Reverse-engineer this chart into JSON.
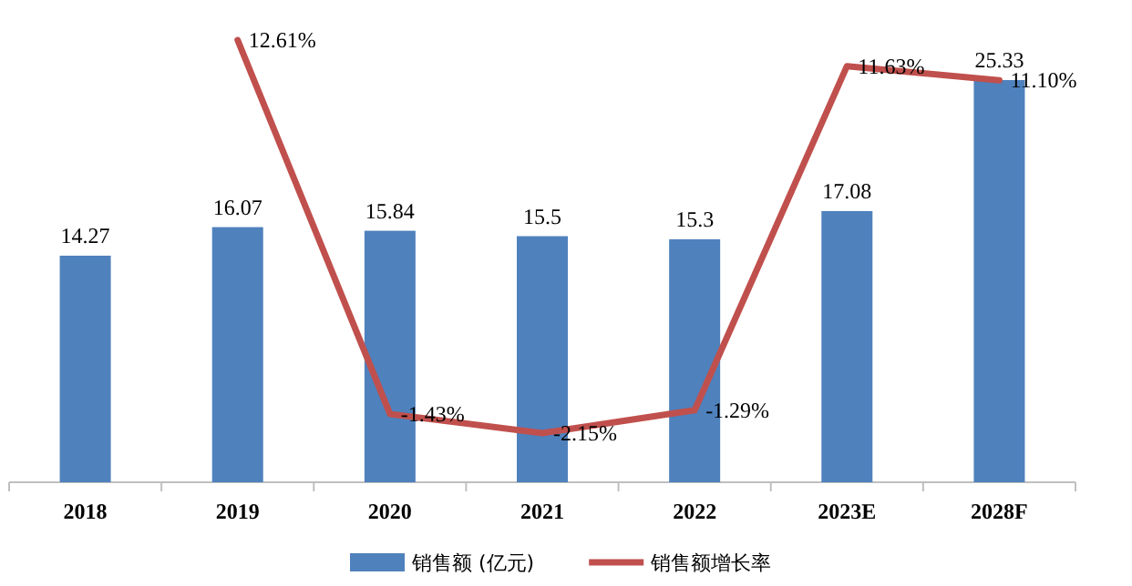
{
  "chart_data": {
    "type": "bar",
    "categories": [
      "2018",
      "2019",
      "2020",
      "2021",
      "2022",
      "2023E",
      "2028F"
    ],
    "data_labels": true,
    "legend": "bottom",
    "series": [
      {
        "name": "销售额 (亿元)",
        "color": "#4f81bd",
        "values": [
          14.27,
          16.07,
          15.84,
          15.5,
          15.3,
          17.08,
          25.33
        ]
      },
      {
        "name": "销售额增长率",
        "type": "line",
        "axis": "y2",
        "color": "#c0504d",
        "values": [
          null,
          12.61,
          -1.43,
          -2.15,
          -1.29,
          11.63,
          11.1
        ],
        "value_labels": [
          null,
          "12.61%",
          "-1.43%",
          "-2.15%",
          "-1.29%",
          "11.63%",
          "11.10%"
        ]
      }
    ]
  }
}
